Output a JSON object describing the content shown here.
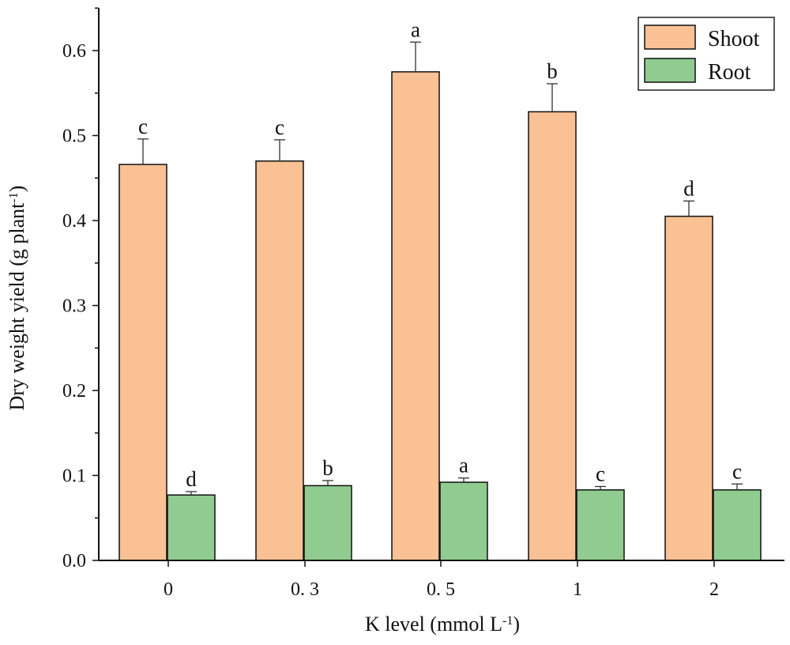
{
  "chart_data": {
    "type": "bar",
    "title": "",
    "xlabel_prefix": "K level (mmol L",
    "xlabel_sup": "-1",
    "xlabel_suffix": ")",
    "ylabel_prefix": "Dry weight yield (g plant",
    "ylabel_sup": "-1",
    "ylabel_suffix": ")",
    "categories": [
      "0",
      "0. 3",
      "0. 5",
      "1",
      "2"
    ],
    "ylim": [
      0,
      0.65
    ],
    "yticks": [
      0.0,
      0.1,
      0.2,
      0.3,
      0.4,
      0.5,
      0.6
    ],
    "ytick_labels": [
      "0.0",
      "0.1",
      "0.2",
      "0.3",
      "0.4",
      "0.5",
      "0.6"
    ],
    "legend_position": "top-right",
    "series": [
      {
        "name": "Shoot",
        "color": "#f9c194",
        "values": [
          0.466,
          0.47,
          0.575,
          0.528,
          0.405
        ],
        "errors": [
          0.03,
          0.025,
          0.035,
          0.033,
          0.018
        ],
        "letters": [
          "c",
          "c",
          "a",
          "b",
          "d"
        ]
      },
      {
        "name": "Root",
        "color": "#90cc90",
        "values": [
          0.077,
          0.088,
          0.092,
          0.083,
          0.083
        ],
        "errors": [
          0.004,
          0.006,
          0.005,
          0.004,
          0.007
        ],
        "letters": [
          "d",
          "b",
          "a",
          "c",
          "c"
        ]
      }
    ]
  }
}
